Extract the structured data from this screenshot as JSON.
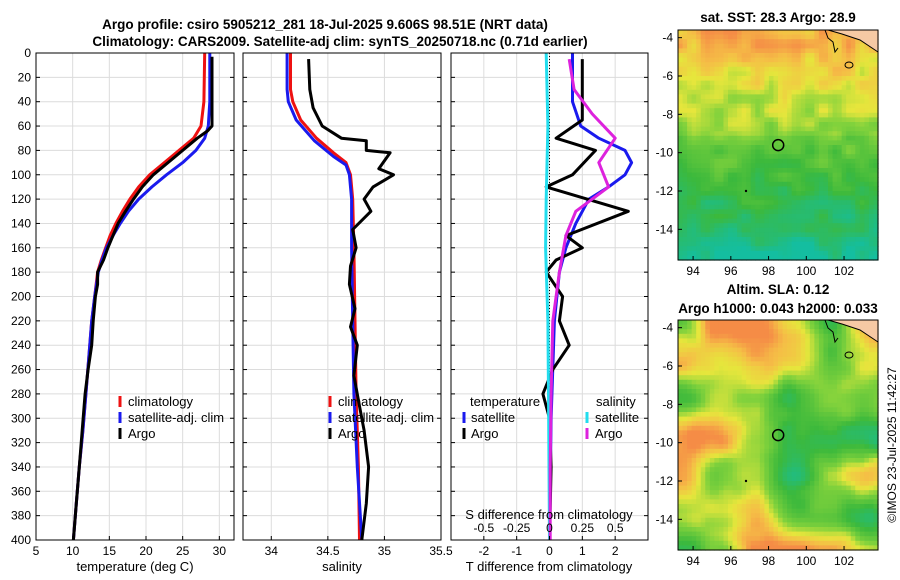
{
  "header": {
    "line1": "Argo profile: csiro 5905212_281 18-Jul-2025 9.606S 98.51E (NRT data)",
    "line2": "Climatology: CARS2009. Satellite-adj clim: synTS_20250718.nc (0.71d earlier)"
  },
  "watermark": "©IMOS 23-Jul-2025 11:42:27",
  "colors": {
    "red": "#ee1111",
    "blue": "#1a1aee",
    "black": "#000000",
    "cyan": "#22ddee",
    "magenta": "#dd22dd"
  },
  "chart_data": [
    {
      "type": "line",
      "panel": "temperature",
      "xlabel": "temperature (deg C)",
      "xlim": [
        5,
        32
      ],
      "xticks": [
        "5",
        "10",
        "15",
        "20",
        "25",
        "30"
      ],
      "ylim": [
        0,
        400
      ],
      "yticks": [
        "0",
        "20",
        "40",
        "60",
        "80",
        "100",
        "120",
        "140",
        "160",
        "180",
        "200",
        "220",
        "240",
        "260",
        "280",
        "300",
        "320",
        "340",
        "360",
        "380",
        "400"
      ],
      "legend": [
        "climatology",
        "satellite-adj. clim",
        "Argo"
      ],
      "series": [
        {
          "name": "climatology",
          "color": "red",
          "points": [
            [
              28.0,
              0
            ],
            [
              27.9,
              40
            ],
            [
              27.5,
              60
            ],
            [
              26.5,
              70
            ],
            [
              24.5,
              80
            ],
            [
              22.5,
              90
            ],
            [
              20.5,
              100
            ],
            [
              19,
              110
            ],
            [
              17.8,
              120
            ],
            [
              16.8,
              130
            ],
            [
              15.9,
              140
            ],
            [
              15.1,
              150
            ],
            [
              14.5,
              160
            ],
            [
              13.9,
              170
            ],
            [
              13.4,
              180
            ],
            [
              13,
              200
            ],
            [
              12.6,
              220
            ],
            [
              12.2,
              250
            ],
            [
              11.8,
              280
            ],
            [
              11.4,
              310
            ],
            [
              10.9,
              340
            ],
            [
              10.5,
              370
            ],
            [
              10.1,
              400
            ]
          ]
        },
        {
          "name": "satellite-adj. clim",
          "color": "blue",
          "points": [
            [
              28.7,
              0
            ],
            [
              28.7,
              40
            ],
            [
              28.5,
              60
            ],
            [
              28,
              70
            ],
            [
              26.8,
              80
            ],
            [
              25,
              90
            ],
            [
              22.8,
              100
            ],
            [
              20.8,
              110
            ],
            [
              19,
              120
            ],
            [
              17.6,
              130
            ],
            [
              16.5,
              140
            ],
            [
              15.5,
              150
            ],
            [
              14.6,
              160
            ],
            [
              14,
              170
            ],
            [
              13.5,
              180
            ],
            [
              13,
              200
            ],
            [
              12.6,
              220
            ],
            [
              12.2,
              250
            ],
            [
              11.8,
              280
            ],
            [
              11.4,
              310
            ],
            [
              10.9,
              340
            ],
            [
              10.5,
              370
            ],
            [
              10.1,
              400
            ]
          ]
        },
        {
          "name": "Argo",
          "color": "black",
          "points": [
            [
              29.0,
              3
            ],
            [
              29.0,
              60
            ],
            [
              28.4,
              64
            ],
            [
              27,
              70
            ],
            [
              25,
              80
            ],
            [
              23,
              90
            ],
            [
              21,
              100
            ],
            [
              19.5,
              110
            ],
            [
              18.3,
              120
            ],
            [
              17.2,
              130
            ],
            [
              16.2,
              140
            ],
            [
              15.5,
              150
            ],
            [
              14.8,
              160
            ],
            [
              14.2,
              170
            ],
            [
              13.4,
              180
            ],
            [
              13.4,
              190
            ],
            [
              13.1,
              200
            ],
            [
              12.8,
              220
            ],
            [
              12.6,
              240
            ],
            [
              12.1,
              260
            ],
            [
              11.7,
              280
            ],
            [
              11.3,
              310
            ],
            [
              10.9,
              340
            ],
            [
              10.5,
              370
            ],
            [
              10.1,
              400
            ]
          ]
        }
      ]
    },
    {
      "type": "line",
      "panel": "salinity",
      "xlabel": "salinity",
      "xlim": [
        33.75,
        35.5
      ],
      "xticks": [
        "34",
        "34.5",
        "35",
        "35.5"
      ],
      "ylim": [
        0,
        400
      ],
      "legend": [
        "climatology",
        "satellite-adj. clim",
        "Argo"
      ],
      "series": [
        {
          "name": "climatology",
          "color": "red",
          "points": [
            [
              34.17,
              0
            ],
            [
              34.17,
              30
            ],
            [
              34.19,
              40
            ],
            [
              34.26,
              55
            ],
            [
              34.4,
              70
            ],
            [
              34.55,
              82
            ],
            [
              34.66,
              90
            ],
            [
              34.7,
              100
            ],
            [
              34.72,
              120
            ],
            [
              34.73,
              160
            ],
            [
              34.74,
              220
            ],
            [
              34.75,
              280
            ],
            [
              34.77,
              340
            ],
            [
              34.78,
              400
            ]
          ]
        },
        {
          "name": "satellite-adj. clim",
          "color": "blue",
          "points": [
            [
              34.14,
              0
            ],
            [
              34.14,
              30
            ],
            [
              34.15,
              40
            ],
            [
              34.22,
              55
            ],
            [
              34.38,
              72
            ],
            [
              34.55,
              85
            ],
            [
              34.66,
              92
            ],
            [
              34.69,
              100
            ],
            [
              34.71,
              120
            ],
            [
              34.71,
              160
            ],
            [
              34.72,
              220
            ],
            [
              34.73,
              280
            ],
            [
              34.76,
              340
            ],
            [
              34.8,
              400
            ]
          ]
        },
        {
          "name": "Argo",
          "color": "black",
          "points": [
            [
              34.33,
              5
            ],
            [
              34.34,
              30
            ],
            [
              34.37,
              45
            ],
            [
              34.45,
              60
            ],
            [
              34.62,
              70
            ],
            [
              34.84,
              72
            ],
            [
              34.84,
              80
            ],
            [
              35.05,
              82
            ],
            [
              34.95,
              95
            ],
            [
              35.08,
              100
            ],
            [
              34.9,
              110
            ],
            [
              34.82,
              120
            ],
            [
              34.88,
              130
            ],
            [
              34.72,
              145
            ],
            [
              34.75,
              160
            ],
            [
              34.7,
              175
            ],
            [
              34.69,
              190
            ],
            [
              34.74,
              210
            ],
            [
              34.7,
              225
            ],
            [
              34.76,
              240
            ],
            [
              34.73,
              265
            ],
            [
              34.78,
              290
            ],
            [
              34.82,
              310
            ],
            [
              34.86,
              340
            ],
            [
              34.84,
              370
            ],
            [
              34.8,
              400
            ]
          ]
        }
      ]
    },
    {
      "type": "line",
      "panel": "difference",
      "xlabel": "T difference from climatology",
      "xlabel2": "S difference from climatology",
      "xlim": [
        -3,
        3
      ],
      "xticks": [
        "-2",
        "-1",
        "0",
        "1",
        "2"
      ],
      "xticks2": [
        "-0.5",
        "-0.25",
        "0",
        "0.25",
        "0.5"
      ],
      "ylim": [
        0,
        400
      ],
      "legend_titles": [
        "temperature",
        "salinity"
      ],
      "legend": [
        "satellite",
        "Argo",
        "satellite",
        "Argo"
      ],
      "series": [
        {
          "name": "T satellite",
          "color": "blue",
          "points": [
            [
              0.7,
              0
            ],
            [
              0.7,
              40
            ],
            [
              0.95,
              60
            ],
            [
              1.5,
              70
            ],
            [
              2.3,
              80
            ],
            [
              2.5,
              90
            ],
            [
              2.3,
              100
            ],
            [
              1.8,
              110
            ],
            [
              1.2,
              120
            ],
            [
              0.8,
              140
            ],
            [
              0.5,
              160
            ],
            [
              0.3,
              180
            ],
            [
              0.15,
              220
            ],
            [
              0.05,
              300
            ],
            [
              0,
              400
            ]
          ]
        },
        {
          "name": "T Argo",
          "color": "black",
          "points": [
            [
              1.0,
              5
            ],
            [
              1.0,
              55
            ],
            [
              0.2,
              70
            ],
            [
              1.4,
              80
            ],
            [
              0.7,
              100
            ],
            [
              -0.1,
              110
            ],
            [
              2.4,
              130
            ],
            [
              0.5,
              150
            ],
            [
              1.0,
              160
            ],
            [
              0.2,
              170
            ],
            [
              -0.1,
              180
            ],
            [
              0.4,
              200
            ],
            [
              0.3,
              220
            ],
            [
              0.6,
              240
            ],
            [
              0.1,
              260
            ],
            [
              -0.2,
              280
            ],
            [
              0.0,
              300
            ],
            [
              0.05,
              340
            ],
            [
              0.0,
              400
            ]
          ]
        },
        {
          "name": "S satellite",
          "color": "cyan",
          "points": [
            [
              -0.1,
              0
            ],
            [
              -0.05,
              60
            ],
            [
              -0.1,
              120
            ],
            [
              -0.12,
              160
            ],
            [
              -0.05,
              220
            ],
            [
              -0.03,
              280
            ],
            [
              0,
              400
            ]
          ]
        },
        {
          "name": "S Argo",
          "color": "magenta",
          "points": [
            [
              0.6,
              5
            ],
            [
              0.75,
              30
            ],
            [
              1.3,
              50
            ],
            [
              2.0,
              70
            ],
            [
              1.5,
              90
            ],
            [
              1.8,
              110
            ],
            [
              0.8,
              130
            ],
            [
              0.5,
              150
            ],
            [
              0.3,
              180
            ],
            [
              0.1,
              220
            ],
            [
              0.05,
              280
            ],
            [
              0.02,
              340
            ],
            [
              0.02,
              400
            ]
          ]
        }
      ]
    },
    {
      "type": "heatmap",
      "panel": "sst map",
      "title": "sat. SST: 28.3 Argo: 28.9",
      "xticks": [
        "94",
        "96",
        "98",
        "100",
        "102"
      ],
      "yticks": [
        "-4",
        "-6",
        "-8",
        "-10",
        "-12",
        "-14"
      ],
      "xlim": [
        93.2,
        103.8
      ],
      "ylim": [
        -15.6,
        -3.6
      ],
      "argo_position": [
        98.51,
        -9.606
      ]
    },
    {
      "type": "heatmap",
      "panel": "sla map",
      "title": "Altim. SLA: 0.12",
      "title2": "Argo h1000: 0.043 h2000: 0.033",
      "xticks": [
        "94",
        "96",
        "98",
        "100",
        "102"
      ],
      "yticks": [
        "-4",
        "-6",
        "-8",
        "-10",
        "-12",
        "-14"
      ],
      "xlim": [
        93.2,
        103.8
      ],
      "ylim": [
        -15.6,
        -3.6
      ],
      "argo_position": [
        98.51,
        -9.606
      ]
    }
  ]
}
